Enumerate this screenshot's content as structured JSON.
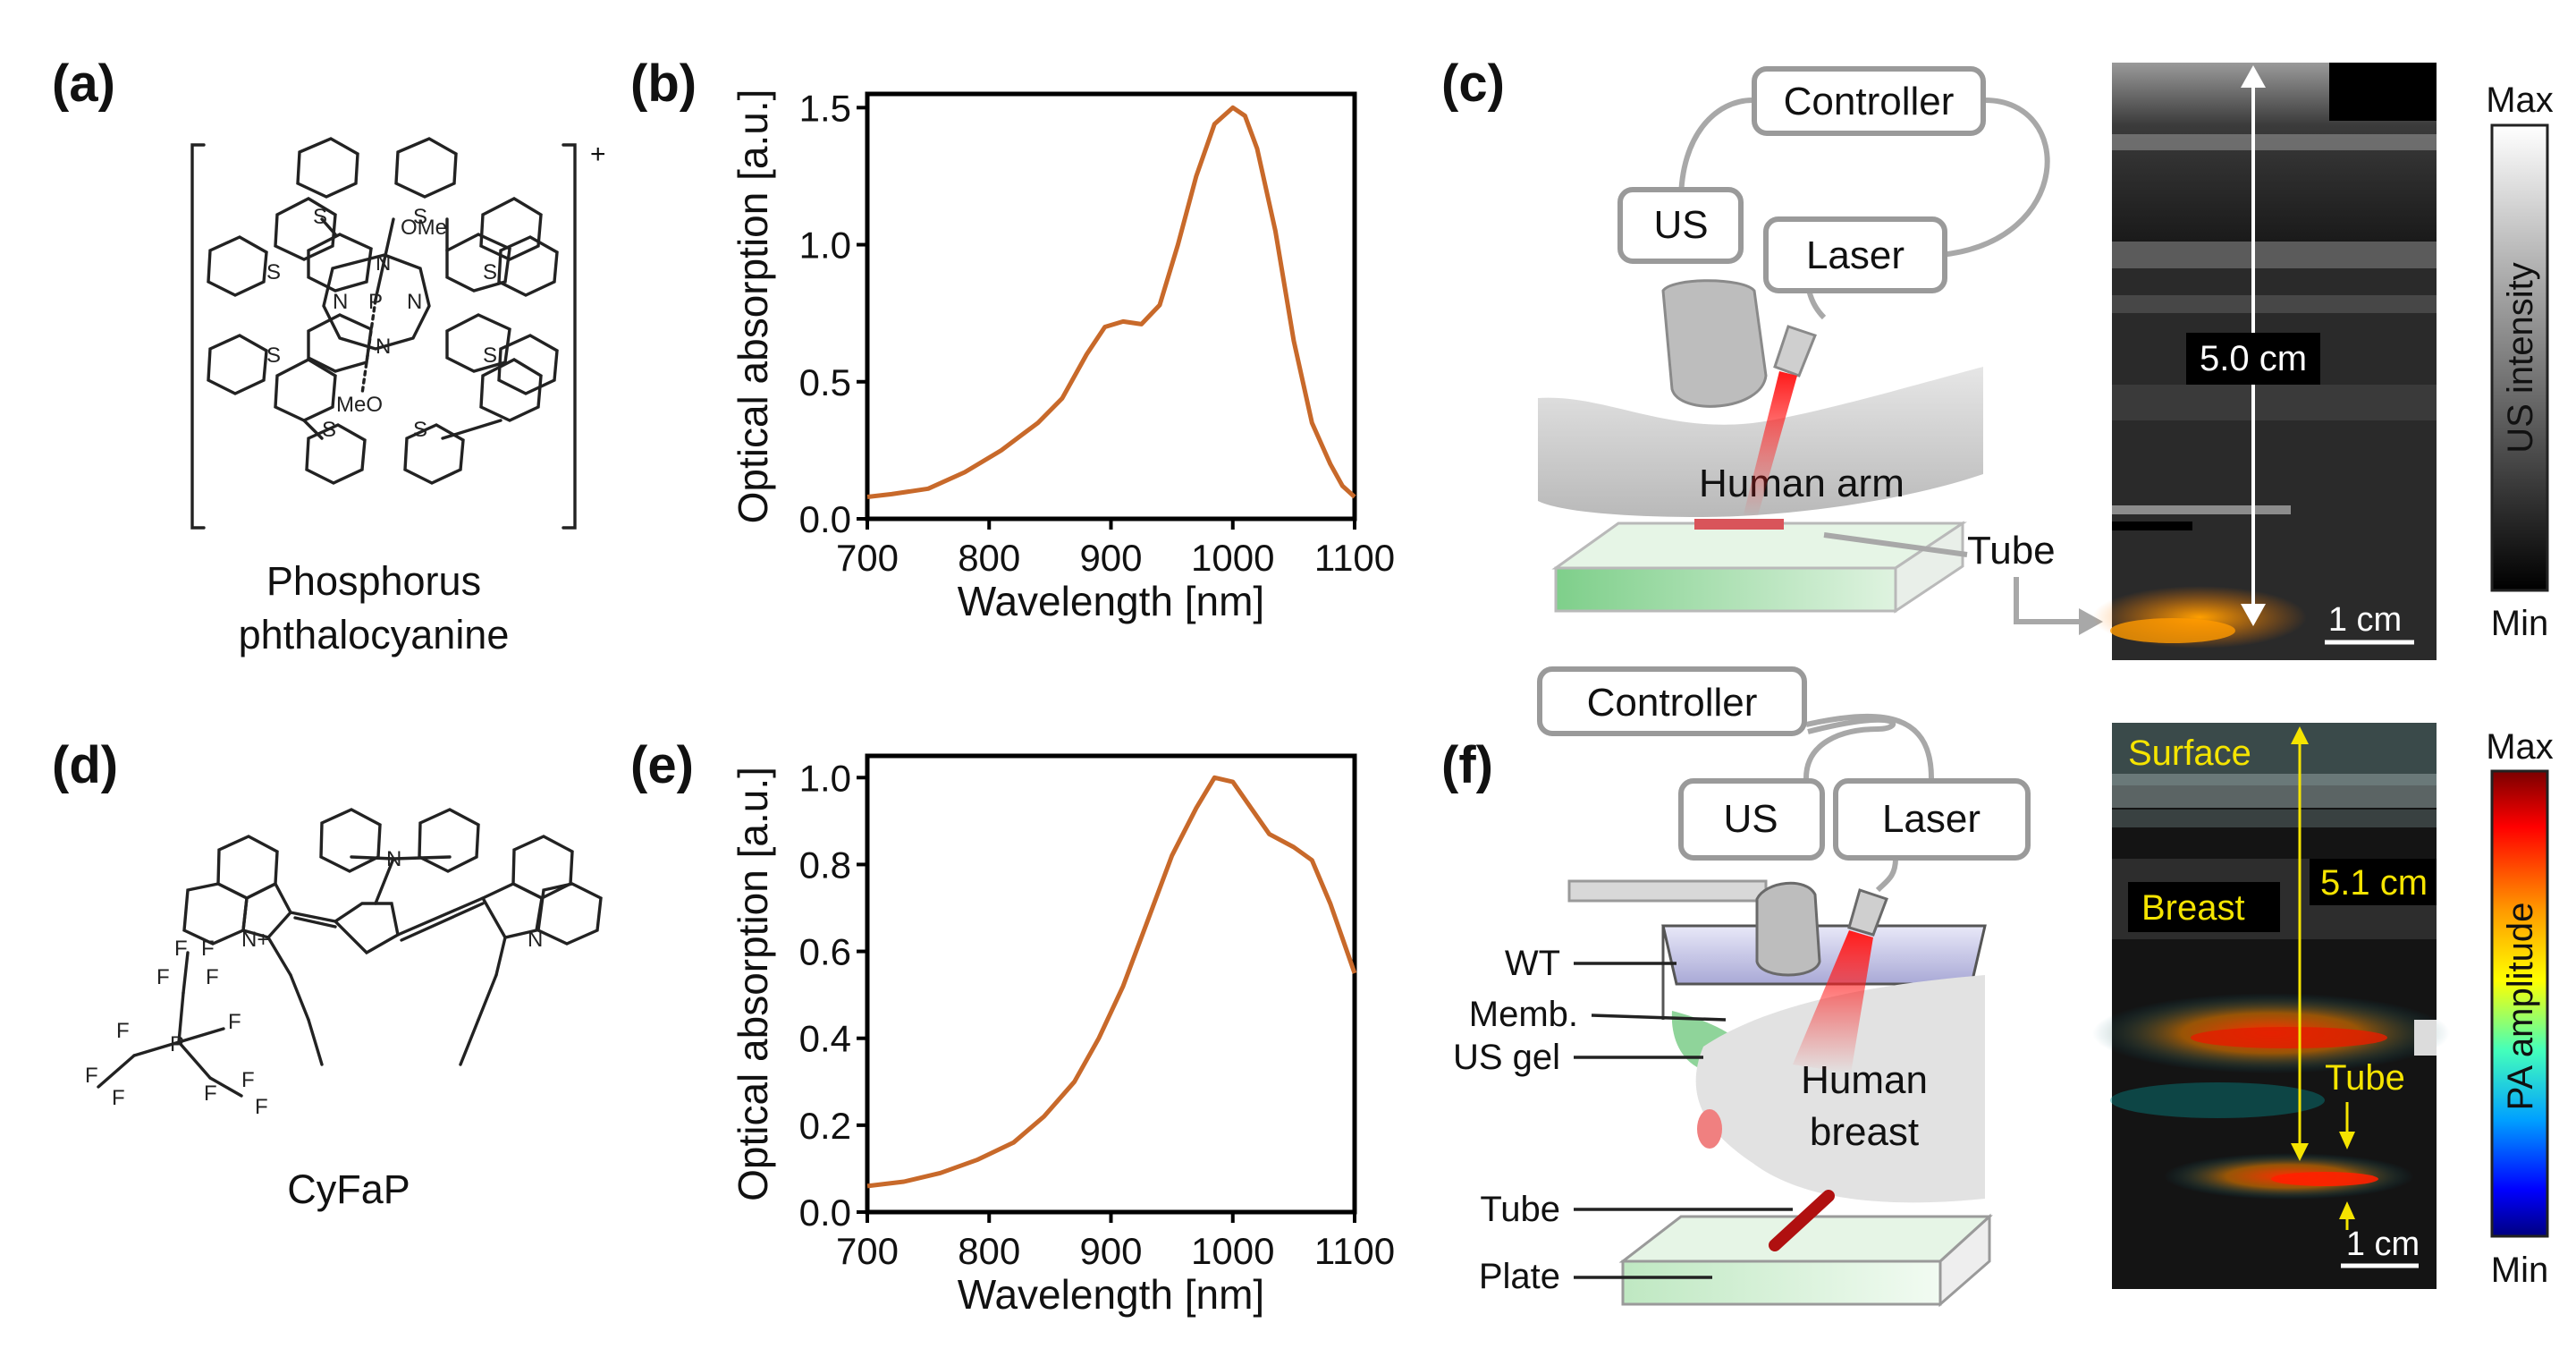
{
  "panels": {
    "a": {
      "label": "(a)",
      "name_line1": "Phosphorus",
      "name_line2": "phthalocyanine",
      "charge": "+",
      "atoms": {
        "S": "S",
        "N": "N",
        "P": "P",
        "OMe": "OMe",
        "MeO": "MeO"
      }
    },
    "b": {
      "label": "(b)"
    },
    "c": {
      "label": "(c)",
      "controller": "Controller",
      "us": "US",
      "laser": "Laser",
      "arm": "Human arm",
      "tube": "Tube",
      "scale_depth": "5.0 cm",
      "scale_bar": "1 cm",
      "cbar_max": "Max",
      "cbar_min": "Min",
      "cbar_title": "US intensity"
    },
    "d": {
      "label": "(d)",
      "name": "CyFaP",
      "atoms": {
        "N": "N",
        "Nplus": "N+",
        "F": "F",
        "P": "P"
      }
    },
    "e": {
      "label": "(e)"
    },
    "f": {
      "label": "(f)",
      "controller": "Controller",
      "us": "US",
      "laser": "Laser",
      "wt": "WT",
      "memb": "Memb.",
      "usgel": "US gel",
      "breast1": "Human",
      "breast2": "breast",
      "tube": "Tube",
      "plate": "Plate",
      "surface": "Surface",
      "breast_tag": "Breast",
      "tube_tag": "Tube",
      "scale_depth": "5.1 cm",
      "scale_bar": "1 cm",
      "cbar_max": "Max",
      "cbar_min": "Min",
      "cbar_title": "PA amplitude"
    }
  },
  "colors": {
    "curve": "#c8692a",
    "annotation_yellow": "#f5e400",
    "gray_box": "#9a9a9a"
  },
  "chart_data": [
    {
      "type": "line",
      "panel": "b",
      "title": "",
      "xlabel": "Wavelength [nm]",
      "ylabel": "Optical absorption [a.u.]",
      "xlim": [
        700,
        1100
      ],
      "ylim": [
        0,
        1.55
      ],
      "xticks": [
        700,
        800,
        900,
        1000,
        1100
      ],
      "yticks": [
        0.0,
        0.5,
        1.0,
        1.5
      ],
      "ytick_labels": [
        "0.0",
        "0.5",
        "1.0",
        "1.5"
      ],
      "x": [
        700,
        720,
        750,
        780,
        810,
        840,
        860,
        880,
        895,
        910,
        925,
        940,
        955,
        970,
        985,
        1000,
        1010,
        1020,
        1035,
        1050,
        1065,
        1080,
        1090,
        1100
      ],
      "y": [
        0.08,
        0.09,
        0.11,
        0.17,
        0.25,
        0.35,
        0.44,
        0.6,
        0.7,
        0.72,
        0.71,
        0.78,
        1.0,
        1.25,
        1.44,
        1.5,
        1.47,
        1.35,
        1.05,
        0.65,
        0.35,
        0.2,
        0.12,
        0.08
      ]
    },
    {
      "type": "line",
      "panel": "e",
      "title": "",
      "xlabel": "Wavelength [nm]",
      "ylabel": "Optical absorption [a.u.]",
      "xlim": [
        700,
        1100
      ],
      "ylim": [
        0,
        1.05
      ],
      "xticks": [
        700,
        800,
        900,
        1000,
        1100
      ],
      "yticks": [
        0.0,
        0.2,
        0.4,
        0.6,
        0.8,
        1.0
      ],
      "ytick_labels": [
        "0.0",
        "0.2",
        "0.4",
        "0.6",
        "0.8",
        "1.0"
      ],
      "x": [
        700,
        730,
        760,
        790,
        820,
        845,
        870,
        890,
        910,
        930,
        950,
        970,
        985,
        1000,
        1015,
        1030,
        1050,
        1065,
        1080,
        1090,
        1100
      ],
      "y": [
        0.06,
        0.07,
        0.09,
        0.12,
        0.16,
        0.22,
        0.3,
        0.4,
        0.52,
        0.67,
        0.82,
        0.93,
        1.0,
        0.99,
        0.93,
        0.87,
        0.84,
        0.81,
        0.71,
        0.63,
        0.55
      ]
    }
  ]
}
